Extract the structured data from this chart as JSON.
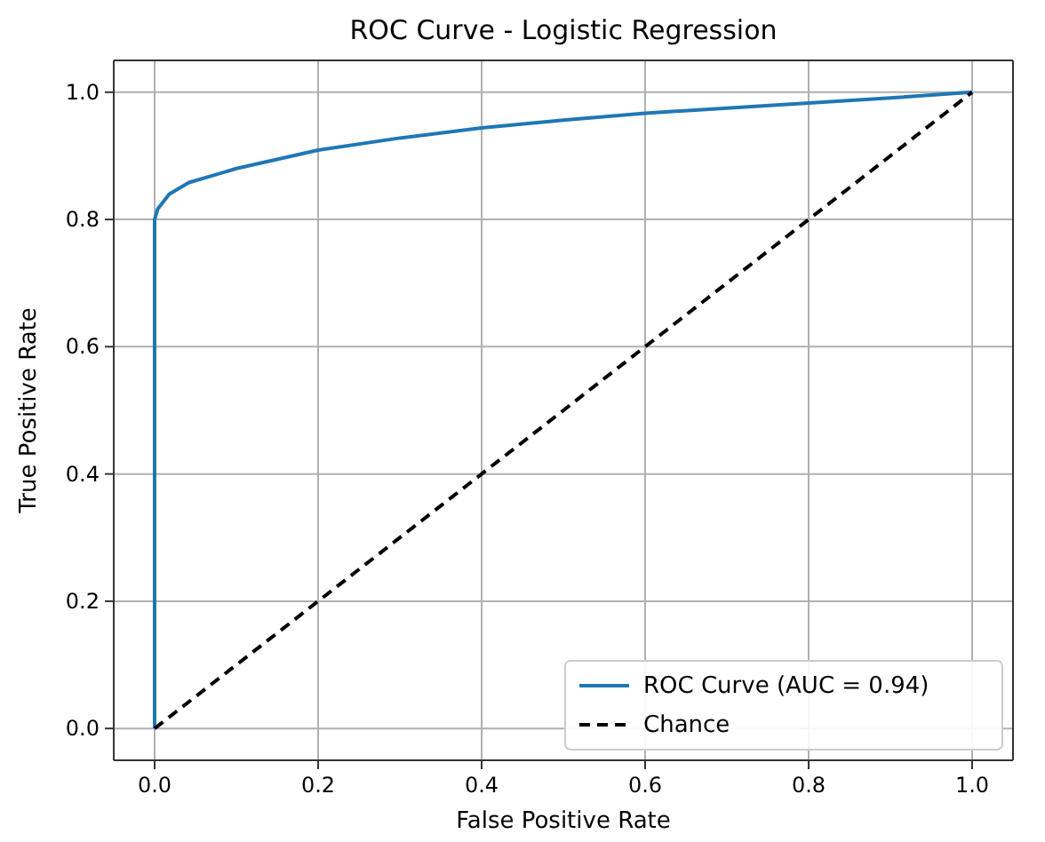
{
  "chart_data": {
    "type": "line",
    "title": "ROC Curve - Logistic Regression",
    "xlabel": "False Positive Rate",
    "ylabel": "True Positive Rate",
    "xlim": [
      -0.05,
      1.05
    ],
    "ylim": [
      -0.05,
      1.05
    ],
    "xticks": [
      {
        "value": 0,
        "label": "0.0"
      },
      {
        "value": 0.2,
        "label": "0.2"
      },
      {
        "value": 0.4,
        "label": "0.4"
      },
      {
        "value": 0.6,
        "label": "0.6"
      },
      {
        "value": 0.8,
        "label": "0.8"
      },
      {
        "value": 1,
        "label": "1.0"
      }
    ],
    "yticks": [
      {
        "value": 0,
        "label": "0.0"
      },
      {
        "value": 0.2,
        "label": "0.2"
      },
      {
        "value": 0.4,
        "label": "0.4"
      },
      {
        "value": 0.6,
        "label": "0.6"
      },
      {
        "value": 0.8,
        "label": "0.8"
      },
      {
        "value": 1,
        "label": "1.0"
      }
    ],
    "grid": true,
    "legend": "bottom right",
    "series": [
      {
        "name": "ROC Curve (AUC = 0.94)",
        "color": "#1f77b4",
        "line_style": "solid",
        "x": [
          0,
          0,
          0.004,
          0.018,
          0.042,
          0.1,
          0.2,
          0.3,
          0.4,
          0.5,
          0.6,
          0.7,
          0.8,
          0.9,
          1
        ],
        "values": [
          0,
          0.8,
          0.817,
          0.84,
          0.858,
          0.88,
          0.909,
          0.928,
          0.944,
          0.956,
          0.967,
          0.975,
          0.983,
          0.991,
          1
        ]
      },
      {
        "name": "Chance",
        "color": "#000000",
        "line_style": "dashed",
        "x": [
          0,
          1
        ],
        "values": [
          0,
          1
        ]
      }
    ]
  }
}
